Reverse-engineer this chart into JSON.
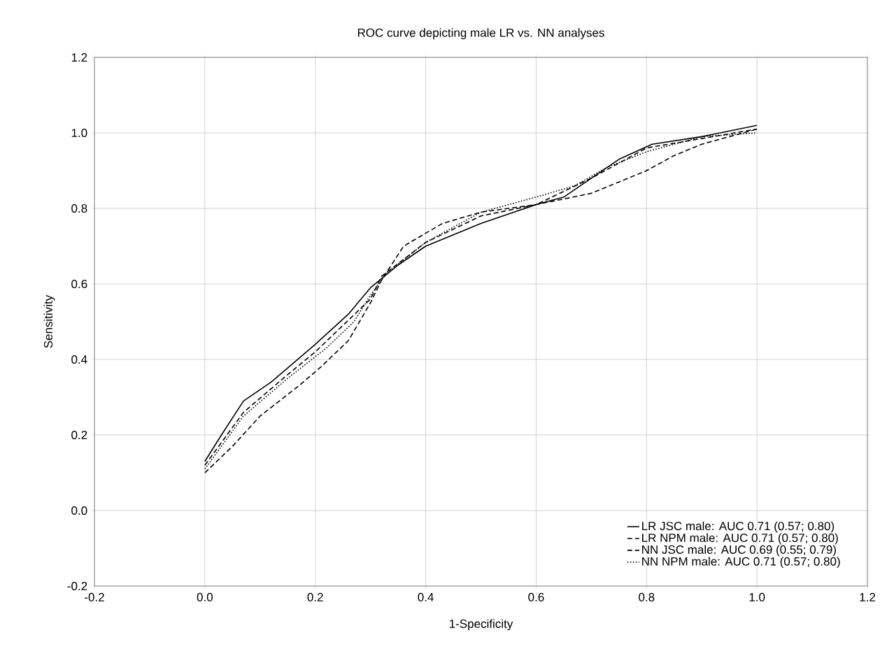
{
  "chart_data": {
    "type": "line",
    "title": "ROC curve depicting male LR vs. NN analyses",
    "xlabel": "1-Specificity",
    "ylabel": "Sensitivity",
    "xlim": [
      -0.2,
      1.2
    ],
    "ylim": [
      -0.2,
      1.2
    ],
    "xticks": [
      {
        "value": -0.2,
        "label": "-0.2"
      },
      {
        "value": 0.0,
        "label": "0.0"
      },
      {
        "value": 0.2,
        "label": "0.2"
      },
      {
        "value": 0.4,
        "label": "0.4"
      },
      {
        "value": 0.6,
        "label": "0.6"
      },
      {
        "value": 0.8,
        "label": "0.8"
      },
      {
        "value": 1.0,
        "label": "1.0"
      },
      {
        "value": 1.2,
        "label": "1.2"
      }
    ],
    "yticks": [
      {
        "value": -0.2,
        "label": "-0.2"
      },
      {
        "value": 0.0,
        "label": "0.0"
      },
      {
        "value": 0.2,
        "label": "0.2"
      },
      {
        "value": 0.4,
        "label": "0.4"
      },
      {
        "value": 0.6,
        "label": "0.6"
      },
      {
        "value": 0.8,
        "label": "0.8"
      },
      {
        "value": 1.0,
        "label": "1.0"
      },
      {
        "value": 1.2,
        "label": "1.2"
      }
    ],
    "grid": true,
    "legend": "bottom right",
    "marker": "none",
    "series": [
      {
        "name": "LR JSC male: AUC 0.71 (0.57; 0.80)",
        "color": "#000000",
        "line_style": "solid",
        "x": [
          0,
          0.03,
          0.07,
          0.12,
          0.2,
          0.26,
          0.3,
          0.35,
          0.4,
          0.5,
          0.6,
          0.65,
          0.7,
          0.75,
          0.81,
          0.9,
          1.0
        ],
        "values": [
          0.13,
          0.2,
          0.29,
          0.34,
          0.44,
          0.52,
          0.59,
          0.65,
          0.7,
          0.76,
          0.81,
          0.83,
          0.88,
          0.93,
          0.97,
          0.99,
          1.02
        ]
      },
      {
        "name": "LR NPM male: AUC 0.71 (0.57; 0.80)",
        "color": "#000000",
        "line_style": "dashed",
        "x": [
          0,
          0.07,
          0.15,
          0.2,
          0.25,
          0.3,
          0.32,
          0.4,
          0.5,
          0.6,
          0.7,
          0.8,
          1.0
        ],
        "values": [
          0.12,
          0.26,
          0.36,
          0.42,
          0.49,
          0.56,
          0.62,
          0.71,
          0.78,
          0.81,
          0.88,
          0.96,
          1.01
        ]
      },
      {
        "name": "NN JSC male: AUC 0.69 (0.55; 0.79)",
        "color": "#000000",
        "line_style": "dashed",
        "x": [
          0,
          0.05,
          0.1,
          0.17,
          0.21,
          0.26,
          0.3,
          0.32,
          0.36,
          0.43,
          0.5,
          0.6,
          0.7,
          0.75,
          0.8,
          0.85,
          0.9,
          1.0
        ],
        "values": [
          0.1,
          0.17,
          0.25,
          0.33,
          0.38,
          0.45,
          0.55,
          0.61,
          0.7,
          0.76,
          0.79,
          0.81,
          0.84,
          0.87,
          0.9,
          0.94,
          0.97,
          1.01
        ]
      },
      {
        "name": "NN NPM male: AUC 0.71 (0.57; 0.80)",
        "color": "#000000",
        "line_style": "dotted",
        "x": [
          0,
          0.07,
          0.15,
          0.22,
          0.27,
          0.3,
          0.33,
          0.4,
          0.5,
          0.6,
          0.67,
          0.73,
          0.8,
          0.9,
          1.0
        ],
        "values": [
          0.11,
          0.25,
          0.35,
          0.43,
          0.5,
          0.57,
          0.63,
          0.71,
          0.79,
          0.83,
          0.86,
          0.91,
          0.95,
          0.99,
          1.0
        ]
      }
    ]
  }
}
